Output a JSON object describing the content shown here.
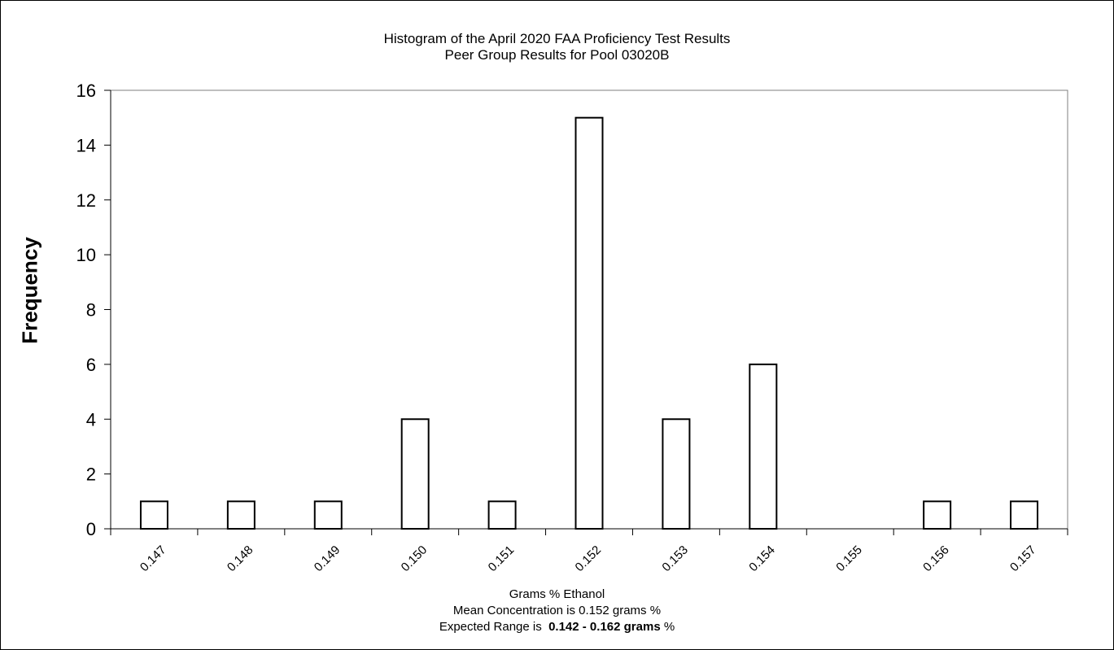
{
  "chart_data": {
    "type": "bar",
    "title": "Histogram of the April 2020 FAA Proficiency Test  Results",
    "subtitle": "Peer Group Results for Pool  03020B",
    "ylabel": "Frequency",
    "xlabel": "Grams % Ethanol",
    "categories": [
      "0.147",
      "0.148",
      "0.149",
      "0.150",
      "0.151",
      "0.152",
      "0.153",
      "0.154",
      "0.155",
      "0.156",
      "0.157"
    ],
    "values": [
      1,
      1,
      1,
      4,
      1,
      15,
      4,
      6,
      0,
      1,
      1
    ],
    "ylim": [
      0,
      16
    ],
    "yticks": [
      0,
      2,
      4,
      6,
      8,
      10,
      12,
      14,
      16
    ],
    "grid": false,
    "bar_fill": "#ffffff",
    "bar_stroke": "#000000"
  },
  "footer": {
    "mean_text": "Mean Concentration is 0.152 grams %",
    "range_prefix": "Expected Range is  ",
    "range_value": "0.142 - 0.162 grams",
    "range_suffix": " %"
  }
}
